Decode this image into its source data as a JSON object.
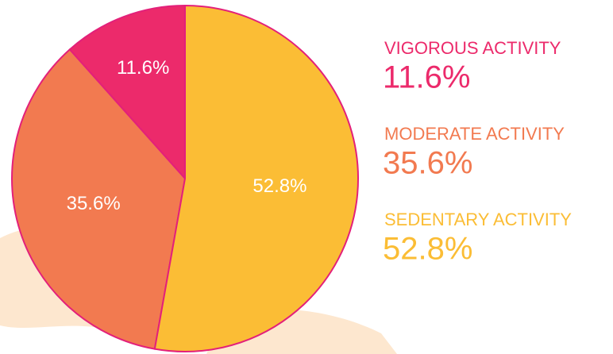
{
  "chart_data": {
    "type": "pie",
    "categories": [
      "VIGOROUS ACTIVITY",
      "MODERATE ACTIVITY",
      "SEDENTARY ACTIVITY"
    ],
    "values": [
      11.6,
      35.6,
      52.8
    ],
    "value_labels": [
      "11.6%",
      "35.6%",
      "52.8%"
    ],
    "colors": [
      "#ec2a6b",
      "#f27a50",
      "#fbbd35"
    ]
  }
}
